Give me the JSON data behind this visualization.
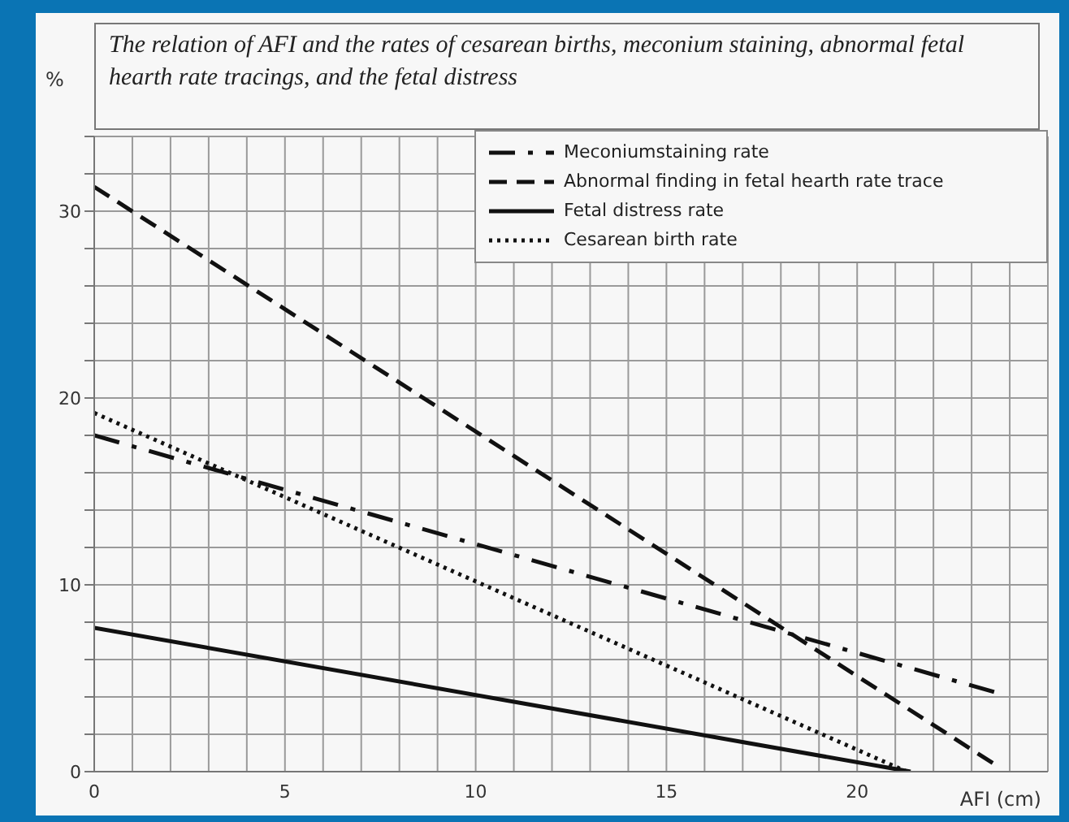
{
  "chart_data": {
    "type": "line",
    "title": "The relation of AFI and the rates of cesarean births, meconium staining, abnormal fetal hearth rate tracings, and the fetal distress",
    "xlabel": "AFI (cm)",
    "ylabel": "%",
    "series": [
      {
        "name": "Meconiumstaining rate",
        "color": "#111111",
        "line_style": "dashdot",
        "x": [
          0,
          23.7
        ],
        "values": [
          18,
          4.2
        ]
      },
      {
        "name": "Abnormal finding in fetal  hearth rate trace",
        "color": "#111111",
        "line_style": "dashed",
        "x": [
          0,
          23.6
        ],
        "values": [
          31.3,
          0.4
        ]
      },
      {
        "name": "Fetal distress rate",
        "color": "#111111",
        "line_style": "solid",
        "x": [
          0,
          21.4
        ],
        "values": [
          7.7,
          0
        ]
      },
      {
        "name": "Cesarean birth rate",
        "color": "#111111",
        "line_style": "dotted",
        "x": [
          0,
          21.3
        ],
        "values": [
          19.2,
          0
        ]
      }
    ],
    "xlim": [
      0,
      25
    ],
    "xticks": [
      0,
      {
        "value": 1,
        "label": null
      },
      {
        "value": 2,
        "label": null
      },
      {
        "value": 3,
        "label": null
      },
      {
        "value": 4,
        "label": null
      },
      5,
      {
        "value": 6,
        "label": null
      },
      {
        "value": 7,
        "label": null
      },
      {
        "value": 8,
        "label": null
      },
      {
        "value": 9,
        "label": null
      },
      10,
      {
        "value": 11,
        "label": null
      },
      {
        "value": 12,
        "label": null
      },
      {
        "value": 13,
        "label": null
      },
      {
        "value": 14,
        "label": null
      },
      15,
      {
        "value": 16,
        "label": null
      },
      {
        "value": 17,
        "label": null
      },
      {
        "value": 18,
        "label": null
      },
      {
        "value": 19,
        "label": null
      },
      20,
      {
        "value": 21,
        "label": null
      },
      {
        "value": 22,
        "label": null
      },
      {
        "value": 23,
        "label": null
      },
      {
        "value": 24,
        "label": null
      },
      {
        "value": 25,
        "label": null
      }
    ],
    "ylim": [
      0,
      34
    ],
    "yticks": [
      0,
      {
        "value": 2,
        "label": null
      },
      {
        "value": 4,
        "label": null
      },
      {
        "value": 6,
        "label": null
      },
      {
        "value": 8,
        "label": null
      },
      10,
      {
        "value": 12,
        "label": null
      },
      {
        "value": 14,
        "label": null
      },
      {
        "value": 16,
        "label": null
      },
      {
        "value": 18,
        "label": null
      },
      20,
      {
        "value": 22,
        "label": null
      },
      {
        "value": 24,
        "label": null
      },
      {
        "value": 26,
        "label": null
      },
      {
        "value": 28,
        "label": null
      },
      30,
      {
        "value": 32,
        "label": null
      },
      {
        "value": 34,
        "label": null
      }
    ],
    "grid": true,
    "legend": "top right",
    "marker": "none"
  }
}
